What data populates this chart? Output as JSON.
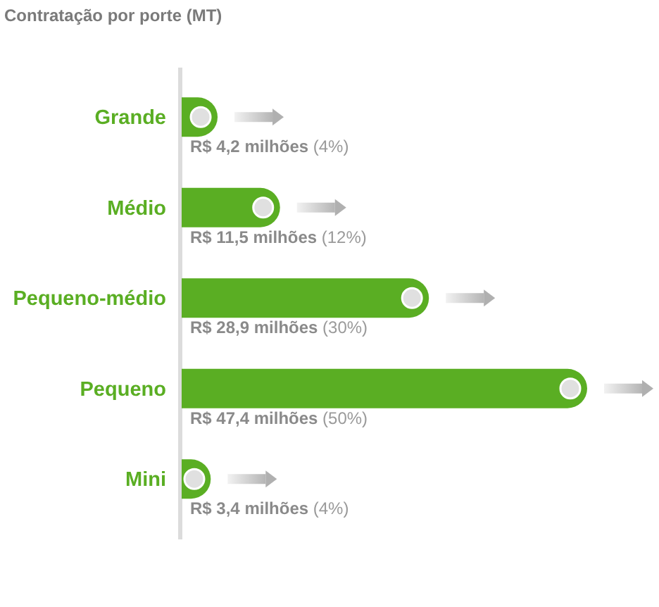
{
  "chart_data": {
    "type": "bar",
    "orientation": "horizontal",
    "title": "Contratação por porte (MT)",
    "categories": [
      "Grande",
      "Médio",
      "Pequeno-médio",
      "Pequeno",
      "Mini"
    ],
    "values": [
      4.2,
      11.5,
      28.9,
      47.4,
      3.4
    ],
    "color": "#5aae23",
    "value_labels": [
      "R$ 4,2 milhões (4%)",
      "R$ 11,5 milhões (12%)",
      "R$ 28,9 milhões (30%)",
      "R$ 47,4 milhões (50%)",
      "R$ 3,4 milhões (4%)"
    ]
  }
}
